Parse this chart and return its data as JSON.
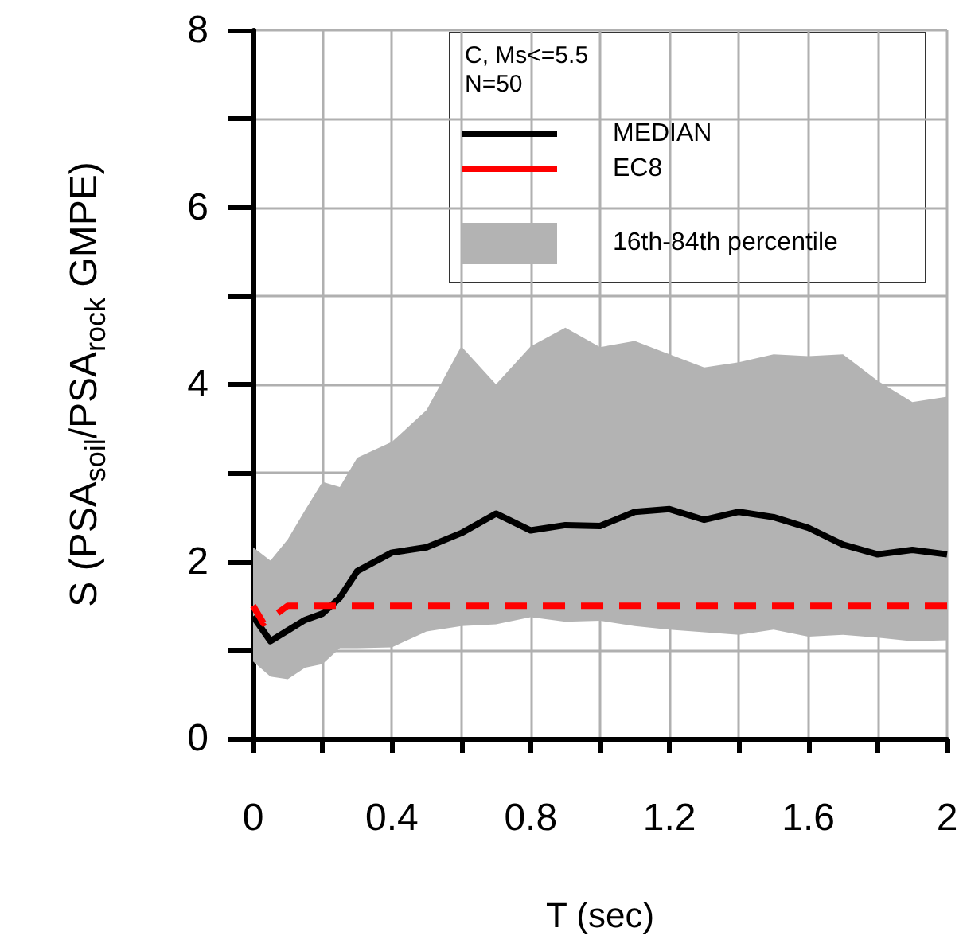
{
  "chart_data": {
    "type": "line",
    "xlabel": "T (sec)",
    "ylabel": "S (PSA$_{soil}$/PSA$_{rock}$ GMPE)",
    "legend_title": "C, Ms<=5.5\nN=50",
    "annotations": [
      "16th-84th percentile"
    ],
    "x": [
      0,
      0.05,
      0.1,
      0.15,
      0.2,
      0.25,
      0.3,
      0.4,
      0.5,
      0.6,
      0.7,
      0.8,
      0.9,
      1.0,
      1.1,
      1.2,
      1.3,
      1.4,
      1.5,
      1.6,
      1.7,
      1.8,
      1.9,
      2.0
    ],
    "series": [
      {
        "name": "MEDIAN",
        "color": "#000000",
        "line_style": "solid",
        "values": [
          1.38,
          1.1,
          1.22,
          1.34,
          1.41,
          1.59,
          1.89,
          2.1,
          2.16,
          2.32,
          2.54,
          2.35,
          2.41,
          2.4,
          2.56,
          2.59,
          2.47,
          2.56,
          2.5,
          2.38,
          2.19,
          2.08,
          2.13,
          2.08
        ],
        "lower": [
          0.87,
          0.7,
          0.67,
          0.8,
          0.84,
          1.02,
          1.02,
          1.03,
          1.21,
          1.27,
          1.29,
          1.37,
          1.32,
          1.33,
          1.27,
          1.23,
          1.2,
          1.17,
          1.23,
          1.15,
          1.17,
          1.14,
          1.1,
          1.11
        ],
        "upper": [
          2.16,
          2.01,
          2.25,
          2.58,
          2.9,
          2.84,
          3.17,
          3.35,
          3.71,
          4.43,
          4.0,
          4.43,
          4.64,
          4.42,
          4.49,
          4.34,
          4.19,
          4.25,
          4.34,
          4.32,
          4.34,
          4.04,
          3.8,
          3.86
        ]
      },
      {
        "name": "EC8",
        "color": "#ff0000",
        "line_style": "dashed",
        "x": [
          0,
          0.03,
          0.1,
          2.0
        ],
        "values": [
          1.5,
          1.3,
          1.5,
          1.5
        ]
      }
    ],
    "xlim": [
      0,
      2
    ],
    "xticks": [
      0,
      {
        "value": 0.2,
        "label": null
      },
      0.4,
      {
        "value": 0.6,
        "label": null
      },
      0.8,
      {
        "value": 1.0,
        "label": null
      },
      1.2,
      {
        "value": 1.4,
        "label": null
      },
      1.6,
      {
        "value": 1.8,
        "label": null
      },
      2
    ],
    "ylim": [
      0,
      8
    ],
    "yticks": [
      0,
      {
        "value": 1,
        "label": null
      },
      2,
      {
        "value": 3,
        "label": null
      },
      4,
      {
        "value": 5,
        "label": null
      },
      6,
      {
        "value": 7,
        "label": null
      },
      8
    ],
    "grid": true,
    "legend": "top right",
    "marker": "none"
  }
}
